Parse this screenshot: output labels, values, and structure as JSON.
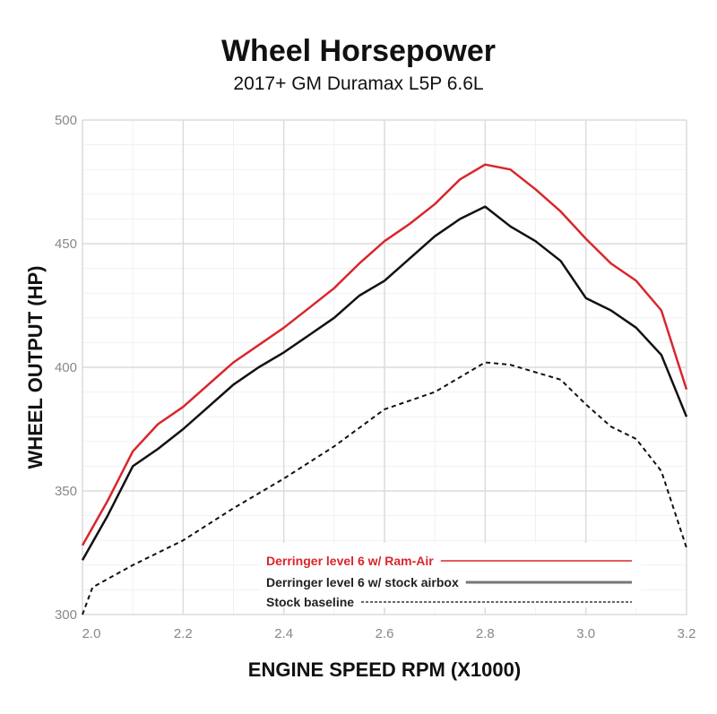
{
  "chart_data": {
    "type": "line",
    "title": "Wheel Horsepower",
    "subtitle": "2017+ GM Duramax L5P 6.6L",
    "xlabel": "ENGINE SPEED RPM (X1000)",
    "ylabel": "WHEEL OUTPUT (HP)",
    "xlim": [
      2.0,
      3.2
    ],
    "ylim": [
      300,
      500
    ],
    "xticks": [
      "2.0",
      "2.2",
      "2.4",
      "2.6",
      "2.8",
      "3.0",
      "3.2"
    ],
    "yticks": [
      "300",
      "350",
      "400",
      "450",
      "500"
    ],
    "grid": true,
    "legend_position": "bottom-right",
    "series": [
      {
        "name": "Derringer level 6 w/ Ram-Air",
        "color": "#d9262c",
        "style": "solid",
        "x": [
          2.0,
          2.05,
          2.1,
          2.15,
          2.2,
          2.25,
          2.3,
          2.35,
          2.4,
          2.45,
          2.5,
          2.55,
          2.6,
          2.65,
          2.7,
          2.75,
          2.8,
          2.85,
          2.9,
          2.95,
          3.0,
          3.05,
          3.1,
          3.15,
          3.2
        ],
        "y": [
          328,
          346,
          366,
          377,
          384,
          393,
          402,
          409,
          416,
          424,
          432,
          442,
          451,
          458,
          466,
          476,
          482,
          480,
          472,
          463,
          452,
          442,
          435,
          423,
          391
        ]
      },
      {
        "name": "Derringer level 6 w/ stock airbox",
        "color": "#111111",
        "style": "solid",
        "x": [
          2.0,
          2.05,
          2.1,
          2.15,
          2.2,
          2.25,
          2.3,
          2.35,
          2.4,
          2.45,
          2.5,
          2.55,
          2.6,
          2.65,
          2.7,
          2.75,
          2.8,
          2.85,
          2.9,
          2.95,
          3.0,
          3.05,
          3.1,
          3.15,
          3.2
        ],
        "y": [
          322,
          340,
          360,
          367,
          375,
          384,
          393,
          400,
          406,
          413,
          420,
          429,
          435,
          444,
          453,
          460,
          465,
          457,
          451,
          443,
          428,
          423,
          416,
          405,
          380
        ]
      },
      {
        "name": "Stock baseline",
        "color": "#111111",
        "style": "dashed",
        "x": [
          2.0,
          2.02,
          2.1,
          2.2,
          2.3,
          2.4,
          2.5,
          2.6,
          2.7,
          2.8,
          2.85,
          2.95,
          3.0,
          3.05,
          3.1,
          3.15,
          3.2
        ],
        "y": [
          300,
          311,
          320,
          330,
          343,
          355,
          368,
          383,
          390,
          402,
          401,
          395,
          385,
          376,
          371,
          358,
          327
        ]
      }
    ]
  }
}
